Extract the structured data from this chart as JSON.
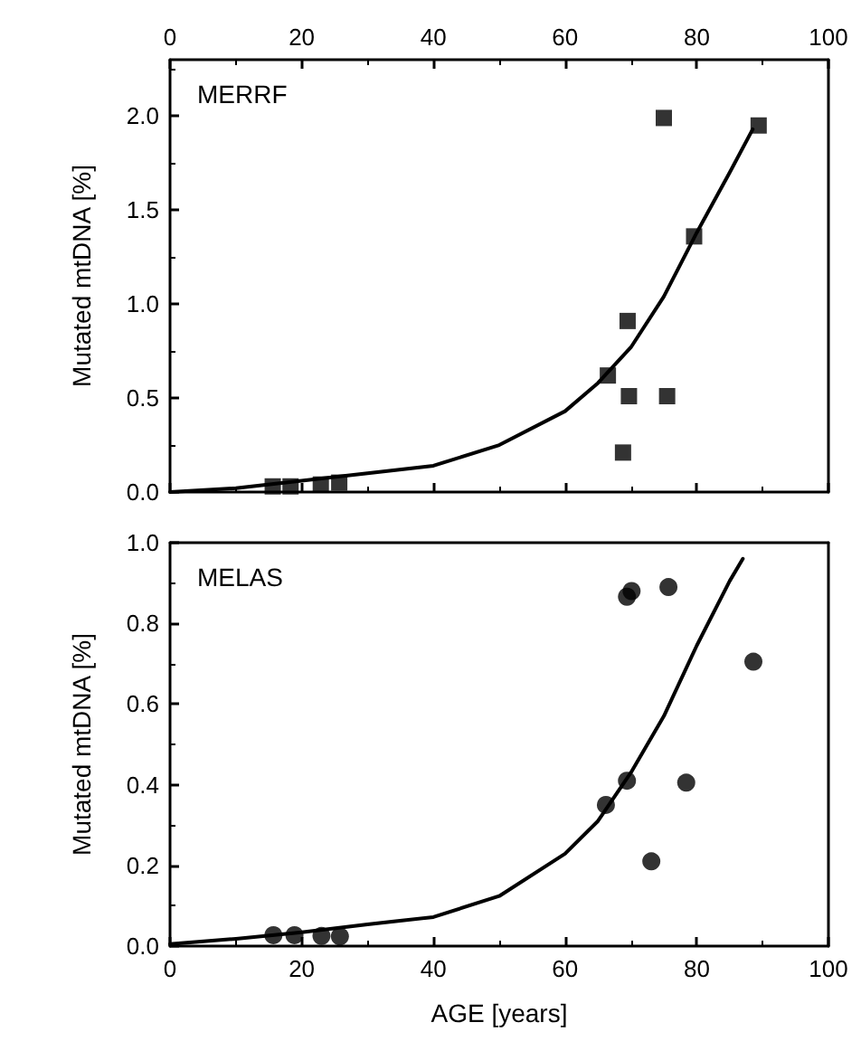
{
  "chart_data": [
    {
      "type": "scatter",
      "title": "MERRF",
      "ylabel": "Mutated mtDNA [%]",
      "xlim": [
        0,
        100
      ],
      "xticks": [
        0,
        20,
        40,
        60,
        80,
        100
      ],
      "ylim": [
        0,
        2.3
      ],
      "yticks": [
        {
          "value": 0,
          "label": "0.0"
        },
        0.5,
        {
          "value": 1,
          "label": "1.0"
        },
        1.5,
        {
          "value": 2,
          "label": "2.0"
        }
      ],
      "grid": false,
      "marker": "square",
      "series": [
        {
          "type": "scatter",
          "color": "#000000",
          "x": [
            15.6,
            18.3,
            22.9,
            25.7,
            66.5,
            68.8,
            69.5,
            69.7,
            75.0,
            75.5,
            79.6,
            89.4
          ],
          "values": [
            0.03,
            0.03,
            0.04,
            0.05,
            0.62,
            0.21,
            0.91,
            0.51,
            1.99,
            0.51,
            1.36,
            1.95
          ]
        },
        {
          "type": "line",
          "color": "#000000",
          "marker": "none",
          "line_style": "solid",
          "x": [
            0,
            10,
            20,
            30,
            40,
            50,
            60,
            65,
            70,
            75,
            80,
            85,
            88.5
          ],
          "values": [
            0,
            0.02,
            0.06,
            0.1,
            0.14,
            0.25,
            0.43,
            0.58,
            0.77,
            1.04,
            1.38,
            1.7,
            1.93
          ]
        }
      ]
    },
    {
      "type": "scatter",
      "title": "MELAS",
      "xlabel": "AGE [years]",
      "ylabel": "Mutated mtDNA [%]",
      "xlim": [
        0,
        100
      ],
      "xticks": [
        0,
        20,
        40,
        60,
        80,
        100
      ],
      "ylim": [
        0,
        1
      ],
      "yticks": [
        {
          "value": 0,
          "label": "0.0"
        },
        0.2,
        0.4,
        0.6,
        0.8,
        {
          "value": 1,
          "label": "1.0"
        }
      ],
      "grid": false,
      "marker": "circle",
      "series": [
        {
          "type": "scatter",
          "color": "#000000",
          "x": [
            15.7,
            18.9,
            23.0,
            25.8,
            66.2,
            69.4,
            69.4,
            70.1,
            75.7,
            78.4,
            73.1,
            88.6
          ],
          "values": [
            0.027,
            0.027,
            0.025,
            0.024,
            0.35,
            0.41,
            0.866,
            0.88,
            0.89,
            0.405,
            0.21,
            0.705
          ]
        },
        {
          "type": "line",
          "color": "#000000",
          "marker": "none",
          "line_style": "solid",
          "x": [
            0,
            10,
            20,
            30,
            40,
            50,
            60,
            65,
            70,
            75,
            80,
            85,
            87
          ],
          "values": [
            0.005,
            0.018,
            0.034,
            0.054,
            0.072,
            0.124,
            0.229,
            0.31,
            0.43,
            0.57,
            0.745,
            0.905,
            0.96
          ]
        }
      ]
    }
  ]
}
